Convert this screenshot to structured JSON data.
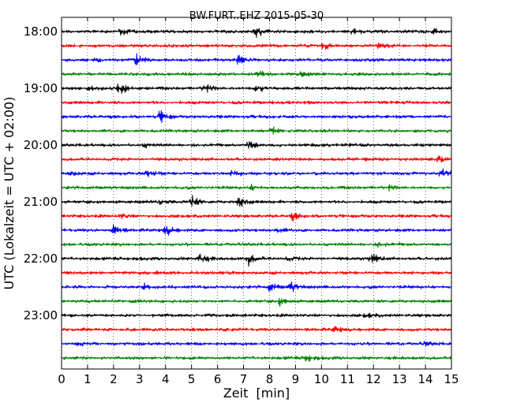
{
  "chart_data": {
    "type": "line",
    "title": "BW.FURT..EHZ 2015-05-30",
    "xlabel": "Zeit  [min]",
    "ylabel": "UTC (Lokalzeit = UTC + 02:00)",
    "xlim": [
      0,
      15
    ],
    "x_ticks": [
      0,
      1,
      2,
      3,
      4,
      5,
      6,
      7,
      8,
      9,
      10,
      11,
      12,
      13,
      14,
      15
    ],
    "x_tick_labels": [
      "0",
      "1",
      "2",
      "3",
      "4",
      "5",
      "6",
      "7",
      "8",
      "9",
      "10",
      "11",
      "12",
      "13",
      "14",
      "15"
    ],
    "y_tick_labels": [
      "18:00",
      "19:00",
      "20:00",
      "21:00",
      "22:00",
      "23:00"
    ],
    "traces_per_hour": 4,
    "trace_colors": [
      "#000000",
      "#ff0000",
      "#0000ff",
      "#008000"
    ],
    "grid": {
      "vertical": true,
      "style": "dotted"
    },
    "series": [
      {
        "start_utc": "18:00",
        "events": [
          [
            2.3,
            0.7
          ],
          [
            7.5,
            1.0
          ],
          [
            14.3,
            0.5
          ],
          [
            11.2,
            0.4
          ]
        ]
      },
      {
        "start_utc": "18:15",
        "events": [
          [
            10.1,
            0.6
          ],
          [
            12.2,
            0.4
          ]
        ]
      },
      {
        "start_utc": "18:30",
        "events": [
          [
            2.9,
            0.9
          ],
          [
            6.8,
            0.7
          ],
          [
            1.3,
            0.4
          ]
        ]
      },
      {
        "start_utc": "18:45",
        "events": [
          [
            7.6,
            0.6
          ],
          [
            9.2,
            0.6
          ]
        ]
      },
      {
        "start_utc": "19:00",
        "events": [
          [
            2.2,
            1.0
          ],
          [
            5.5,
            0.8
          ],
          [
            7.5,
            0.9
          ],
          [
            1.0,
            0.4
          ]
        ]
      },
      {
        "start_utc": "19:15",
        "events": []
      },
      {
        "start_utc": "19:30",
        "events": [
          [
            3.8,
            1.0
          ]
        ]
      },
      {
        "start_utc": "19:45",
        "events": [
          [
            8.1,
            0.5
          ]
        ]
      },
      {
        "start_utc": "20:00",
        "events": [
          [
            7.2,
            0.9
          ],
          [
            3.2,
            0.3
          ]
        ]
      },
      {
        "start_utc": "20:15",
        "events": [
          [
            14.5,
            0.4
          ]
        ]
      },
      {
        "start_utc": "20:30",
        "events": [
          [
            3.3,
            0.8
          ],
          [
            6.6,
            0.6
          ],
          [
            14.6,
            0.7
          ],
          [
            0.3,
            0.4
          ]
        ]
      },
      {
        "start_utc": "20:45",
        "events": [
          [
            7.3,
            0.4
          ],
          [
            12.6,
            0.4
          ]
        ]
      },
      {
        "start_utc": "21:00",
        "events": [
          [
            5.0,
            1.0
          ],
          [
            6.8,
            1.0
          ],
          [
            3.8,
            0.4
          ]
        ]
      },
      {
        "start_utc": "21:15",
        "events": [
          [
            8.9,
            0.6
          ],
          [
            2.3,
            0.4
          ]
        ]
      },
      {
        "start_utc": "21:30",
        "events": [
          [
            2.0,
            1.0
          ],
          [
            4.0,
            0.9
          ],
          [
            8.3,
            0.4
          ]
        ]
      },
      {
        "start_utc": "21:45",
        "events": [
          [
            12.2,
            0.4
          ]
        ]
      },
      {
        "start_utc": "22:00",
        "events": [
          [
            5.3,
            1.0
          ],
          [
            7.2,
            0.9
          ],
          [
            11.9,
            0.9
          ],
          [
            8.7,
            0.3
          ]
        ]
      },
      {
        "start_utc": "22:15",
        "events": []
      },
      {
        "start_utc": "22:30",
        "events": [
          [
            8.0,
            0.7
          ],
          [
            8.8,
            0.8
          ],
          [
            3.2,
            0.4
          ]
        ]
      },
      {
        "start_utc": "22:45",
        "events": [
          [
            8.4,
            0.6
          ]
        ]
      },
      {
        "start_utc": "23:00",
        "events": [
          [
            11.7,
            0.3
          ]
        ]
      },
      {
        "start_utc": "23:15",
        "events": [
          [
            10.5,
            0.5
          ]
        ]
      },
      {
        "start_utc": "23:30",
        "events": [
          [
            14.0,
            0.3
          ],
          [
            0.7,
            0.3
          ]
        ]
      },
      {
        "start_utc": "23:45",
        "events": [
          [
            9.4,
            0.6
          ]
        ]
      }
    ]
  }
}
